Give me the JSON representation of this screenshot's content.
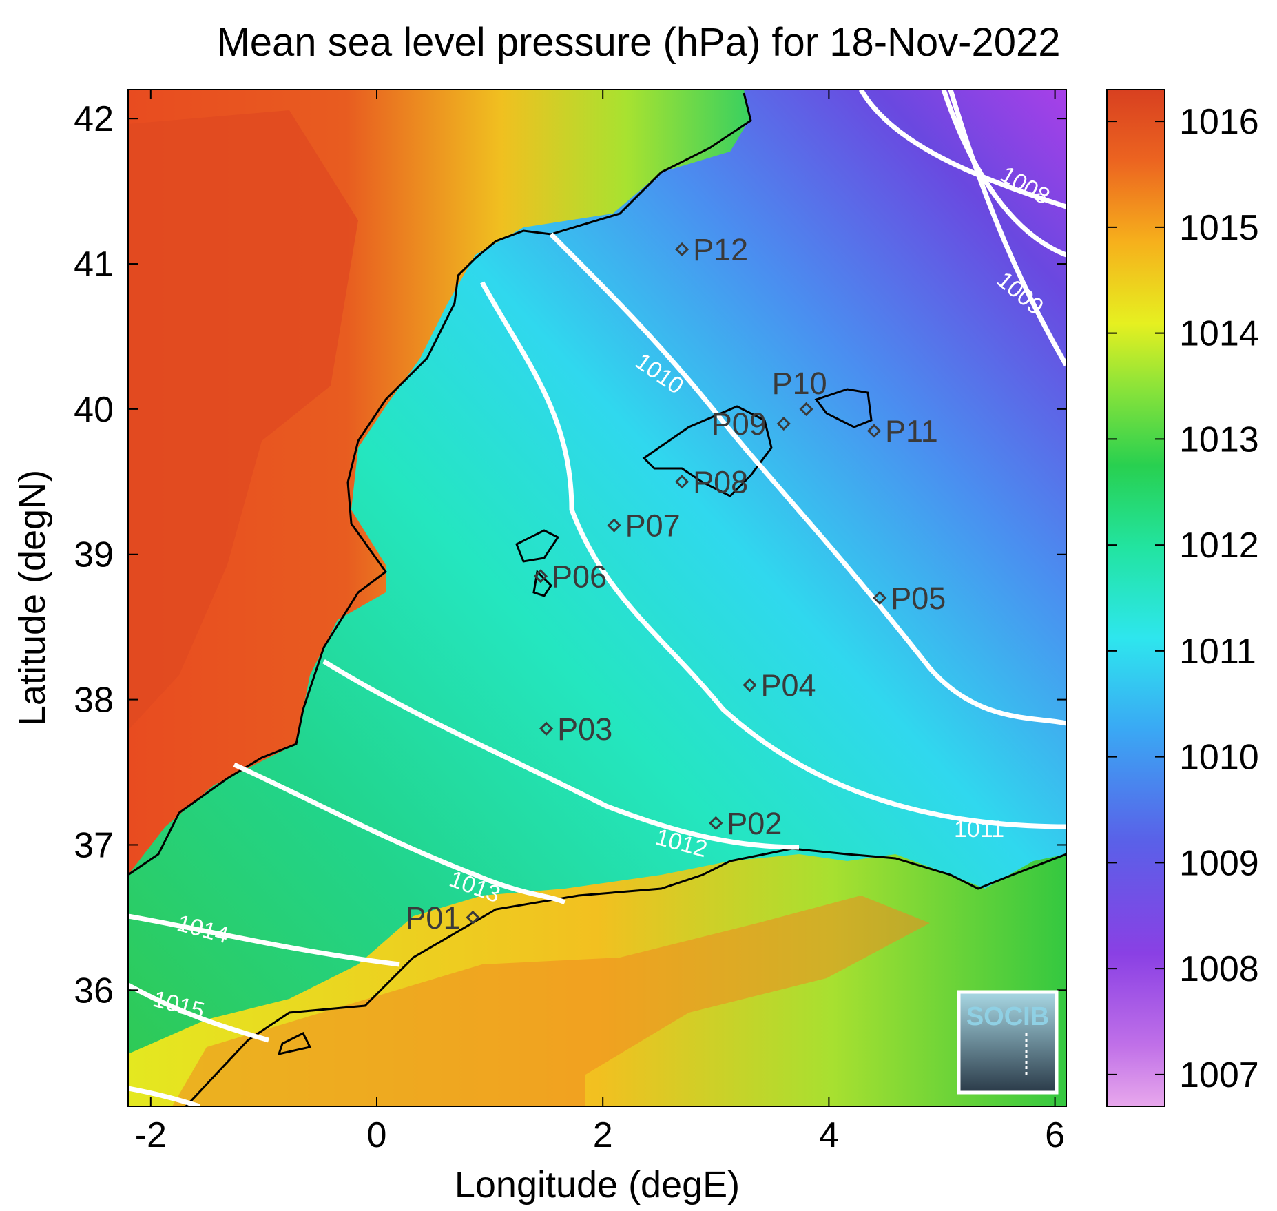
{
  "title": "Mean sea level pressure (hPa) for 18-Nov-2022",
  "map": {
    "lon_range": [
      -2.2,
      6.1
    ],
    "lat_range": [
      35.2,
      42.2
    ],
    "xlabel": "Longitude (degE)",
    "ylabel": "Latitude (degN)",
    "xticks": [
      -2,
      0,
      2,
      4,
      6
    ],
    "yticks": [
      36,
      37,
      38,
      39,
      40,
      41,
      42
    ],
    "field_pressure": {
      "west_land": 1015.8,
      "coastal_sea": 1012.5,
      "central_sea": 1011.0,
      "northeast_sea": 1009.3,
      "far_northeast": 1007.5,
      "north_africa": 1014.5
    },
    "contours": [
      {
        "level": 1008,
        "label": "1008"
      },
      {
        "level": 1009,
        "label": "1009"
      },
      {
        "level": 1010,
        "label": "1010"
      },
      {
        "level": 1011,
        "label": "1011"
      },
      {
        "level": 1012,
        "label": "1012"
      },
      {
        "level": 1013,
        "label": "1013"
      },
      {
        "level": 1014,
        "label": "1014"
      },
      {
        "level": 1015,
        "label": "1015"
      }
    ],
    "stations": [
      {
        "id": "P01",
        "lon": 0.85,
        "lat": 36.5
      },
      {
        "id": "P02",
        "lon": 3.0,
        "lat": 37.15
      },
      {
        "id": "P03",
        "lon": 1.5,
        "lat": 37.8
      },
      {
        "id": "P04",
        "lon": 3.3,
        "lat": 38.1
      },
      {
        "id": "P05",
        "lon": 4.45,
        "lat": 38.7
      },
      {
        "id": "P06",
        "lon": 1.45,
        "lat": 38.85
      },
      {
        "id": "P07",
        "lon": 2.1,
        "lat": 39.2
      },
      {
        "id": "P08",
        "lon": 2.7,
        "lat": 39.5
      },
      {
        "id": "P09",
        "lon": 3.6,
        "lat": 39.9
      },
      {
        "id": "P10",
        "lon": 3.8,
        "lat": 40.0
      },
      {
        "id": "P11",
        "lon": 4.4,
        "lat": 39.85
      },
      {
        "id": "P12",
        "lon": 2.7,
        "lat": 41.1
      }
    ]
  },
  "colorbar": {
    "min": 1006.7,
    "max": 1016.3,
    "ticks": [
      1007,
      1008,
      1009,
      1010,
      1011,
      1012,
      1013,
      1014,
      1015,
      1016
    ],
    "colors": [
      "#e8a8ec",
      "#a84fe4",
      "#6a3fe0",
      "#4a7ff0",
      "#2ee6ee",
      "#22e0a0",
      "#30d040",
      "#b8ee30",
      "#f4ea20",
      "#f4a020",
      "#e85020",
      "#d84020"
    ]
  },
  "logo": {
    "text": "SOCIB"
  }
}
